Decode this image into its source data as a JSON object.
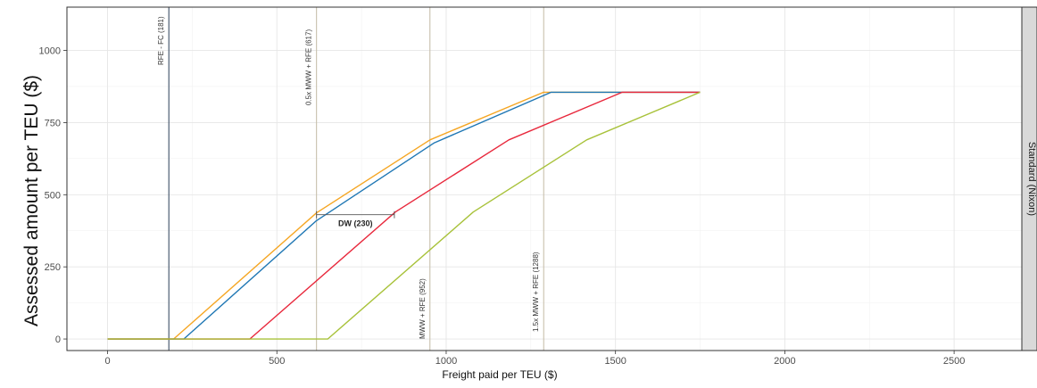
{
  "chart_data": {
    "type": "line",
    "xlabel": "Freight paid per TEU ($)",
    "ylabel": "Assessed amount per TEU ($)",
    "xlim": [
      -120,
      2700
    ],
    "ylim": [
      -40,
      1150
    ],
    "x_ticks": [
      0,
      500,
      1000,
      1500,
      2000,
      2500
    ],
    "y_ticks": [
      0,
      250,
      500,
      750,
      1000
    ],
    "x_tick_labels": [
      "0",
      "500",
      "1000",
      "1500",
      "2000",
      "2500"
    ],
    "y_tick_labels": [
      "0",
      "250",
      "500",
      "750",
      "1000"
    ],
    "grid": true,
    "facet_label": "Standard (Nixon)",
    "series": [
      {
        "color": "#f5a623",
        "points": [
          [
            0,
            0
          ],
          [
            195,
            0
          ],
          [
            617,
            437
          ],
          [
            952,
            690
          ],
          [
            1288,
            855
          ],
          [
            1750,
            855
          ]
        ]
      },
      {
        "color": "#1f77b4",
        "points": [
          [
            0,
            0
          ],
          [
            225,
            0
          ],
          [
            617,
            410
          ],
          [
            965,
            680
          ],
          [
            1310,
            855
          ],
          [
            1750,
            855
          ]
        ]
      },
      {
        "color": "#e8283c",
        "points": [
          [
            0,
            0
          ],
          [
            420,
            0
          ],
          [
            850,
            440
          ],
          [
            1185,
            690
          ],
          [
            1520,
            855
          ],
          [
            1750,
            855
          ]
        ]
      },
      {
        "color": "#a8c23a",
        "points": [
          [
            0,
            0
          ],
          [
            650,
            0
          ],
          [
            1080,
            440
          ],
          [
            1415,
            690
          ],
          [
            1750,
            855
          ]
        ]
      }
    ],
    "vlines": [
      {
        "x": 181,
        "label": "RFE - FC (181)",
        "color": "#3d4f66"
      },
      {
        "x": 617,
        "label": "0.5x MWW + RFE (617)",
        "color": "#c8c0ac"
      },
      {
        "x": 952,
        "label": "MWW + RFE (952)",
        "color": "#c8c0ac"
      },
      {
        "x": 1288,
        "label": "1.5x MWW + RFE (1288)",
        "color": "#c8c0ac"
      }
    ],
    "annotation": {
      "label": "DW (230)",
      "x_start": 617,
      "x_end": 847,
      "y": 437
    }
  }
}
